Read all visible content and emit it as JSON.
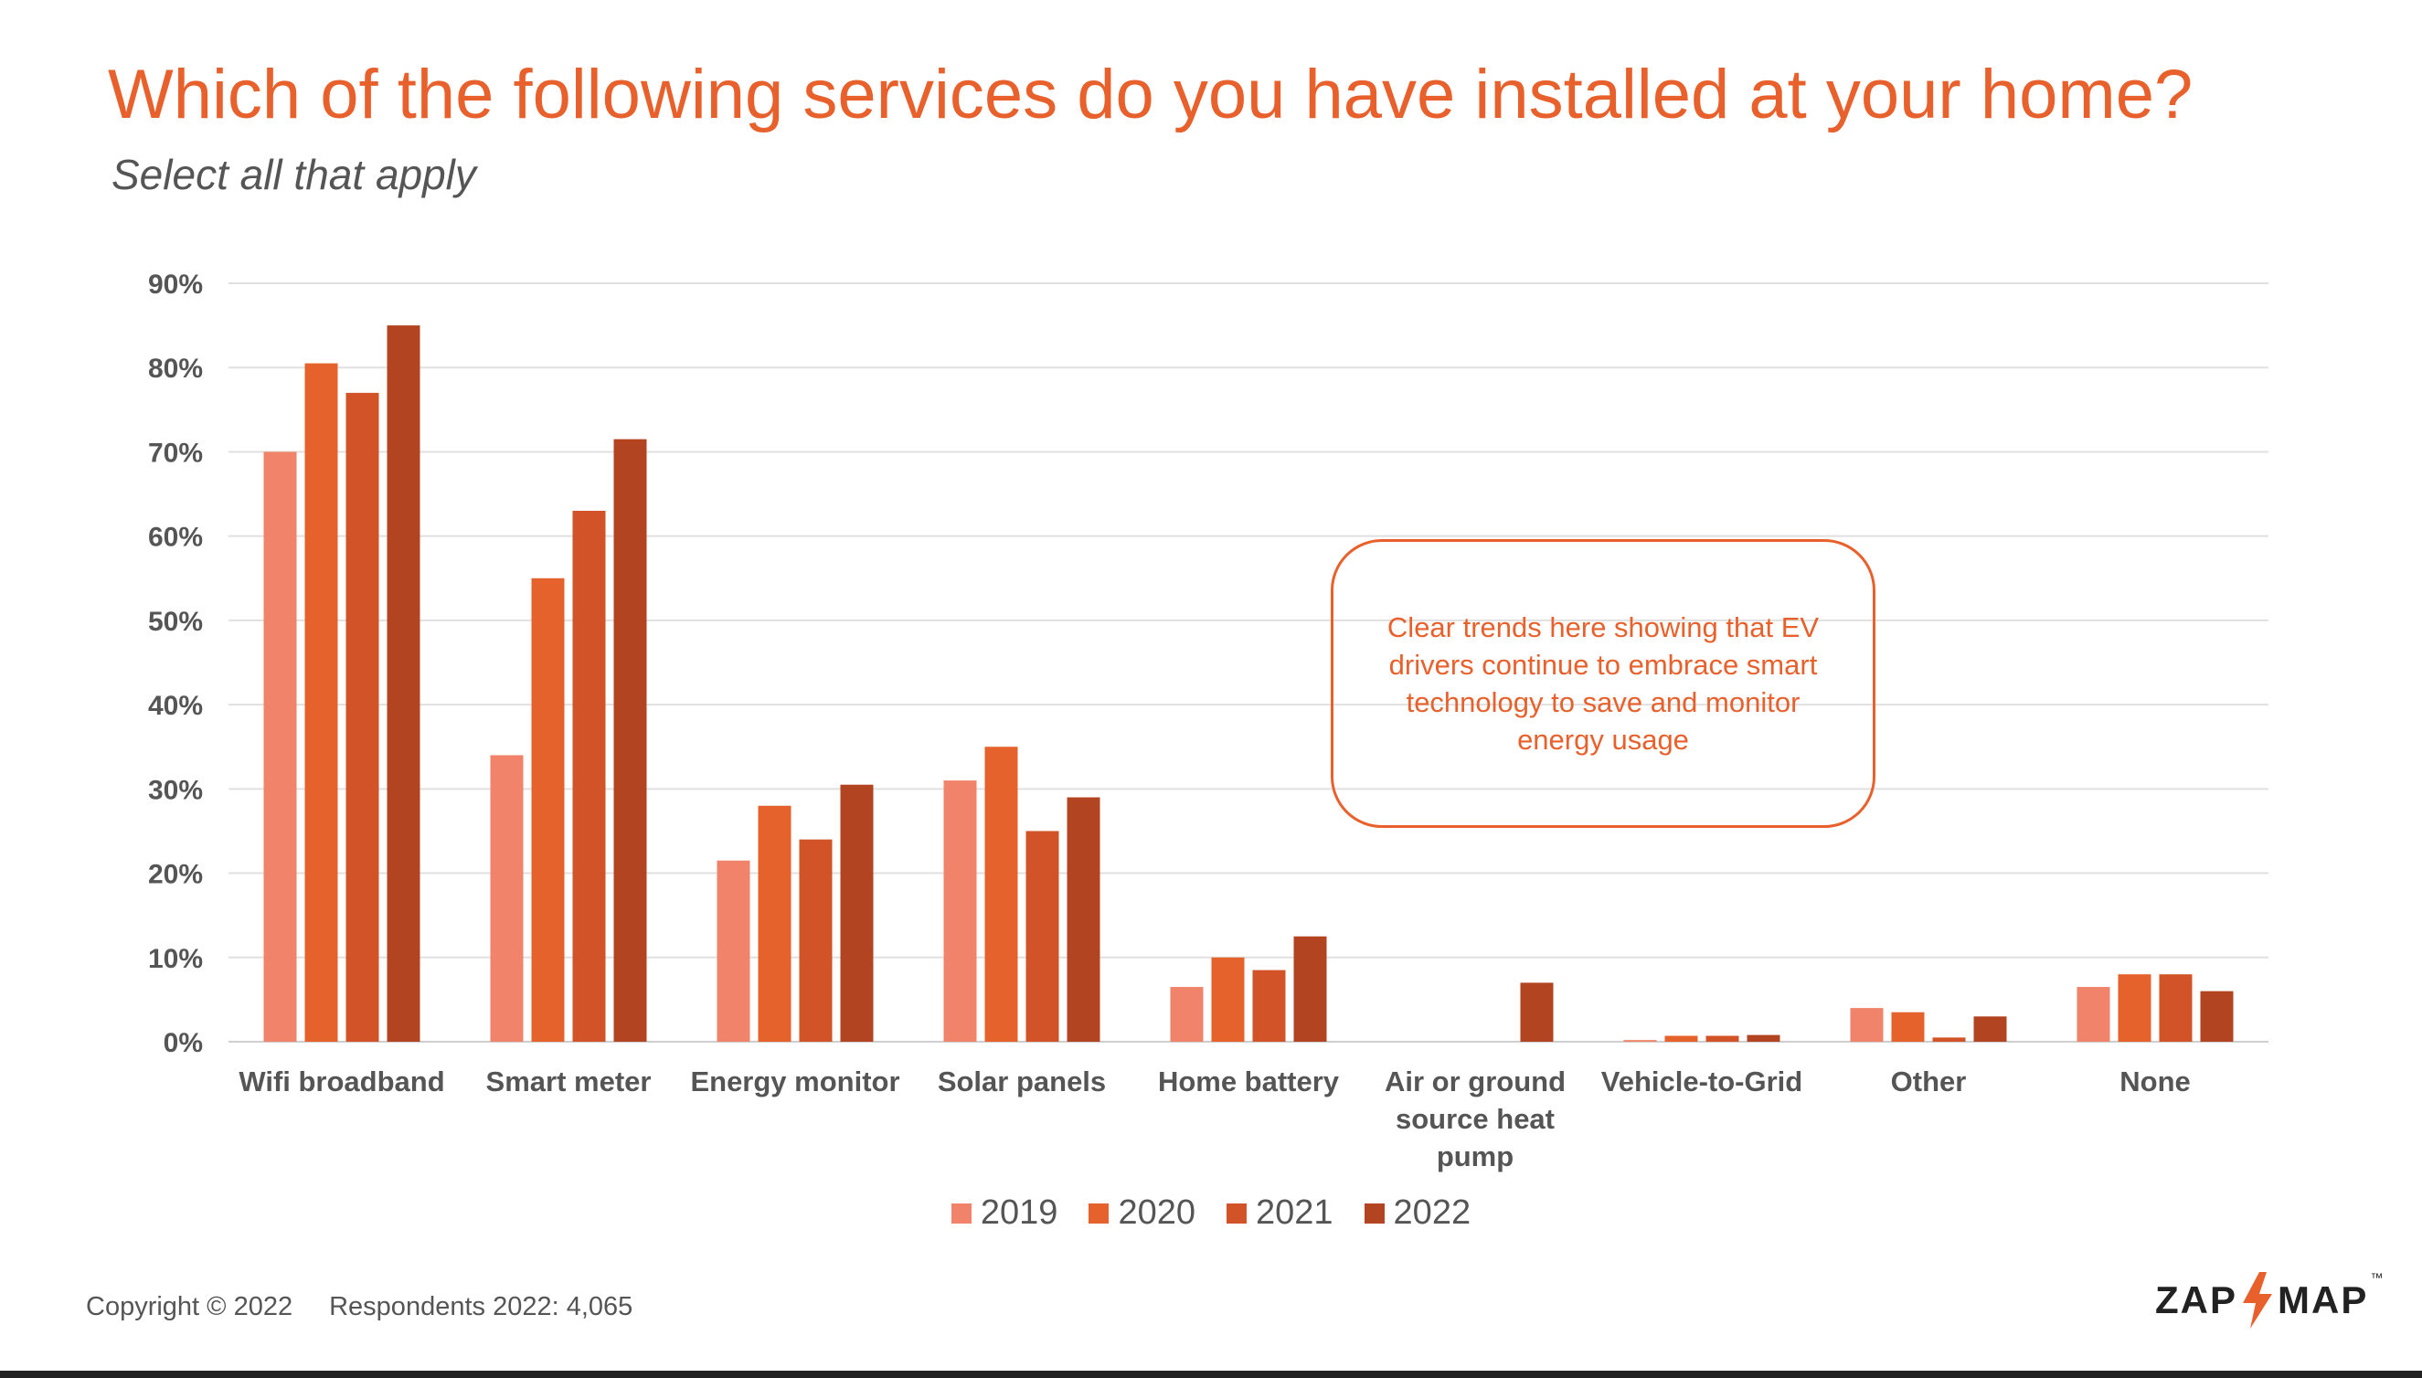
{
  "title": "Which of the following services do you have installed at your home?",
  "subtitle": "Select all that apply",
  "callout": "Clear trends here showing that EV drivers continue to embrace smart technology to save and monitor energy usage",
  "footer": {
    "copyright": "Copyright © 2022",
    "respondents": "Respondents 2022: 4,065"
  },
  "logo": {
    "left": "ZAP",
    "right": "MAP",
    "mark": "™"
  },
  "colors": {
    "axis_text": "#555555",
    "grid": "#e0e0e0",
    "title": "#e8612c"
  },
  "chart_data": {
    "type": "bar",
    "categories": [
      "Wifi broadband",
      "Smart meter",
      "Energy monitor",
      "Solar panels",
      "Home battery",
      "Air or ground source heat pump",
      "Vehicle-to-Grid",
      "Other",
      "None"
    ],
    "category_lines": [
      [
        "Wifi broadband"
      ],
      [
        "Smart meter"
      ],
      [
        "Energy monitor"
      ],
      [
        "Solar panels"
      ],
      [
        "Home battery"
      ],
      [
        "Air or ground",
        "source heat",
        "pump"
      ],
      [
        "Vehicle-to-Grid"
      ],
      [
        "Other"
      ],
      [
        "None"
      ]
    ],
    "series": [
      {
        "name": "2019",
        "color": "#f0836a",
        "values": [
          70,
          34,
          21.5,
          31,
          6.5,
          0,
          0.2,
          4,
          6.5
        ]
      },
      {
        "name": "2020",
        "color": "#e5622c",
        "values": [
          80.5,
          55,
          28,
          35,
          10,
          0,
          0.7,
          3.5,
          8
        ]
      },
      {
        "name": "2021",
        "color": "#d15327",
        "values": [
          77,
          63,
          24,
          25,
          8.5,
          0,
          0.7,
          0.5,
          8
        ]
      },
      {
        "name": "2022",
        "color": "#b24422",
        "values": [
          85,
          71.5,
          30.5,
          29,
          12.5,
          7,
          0.8,
          3,
          6
        ]
      }
    ],
    "ylim": [
      0,
      90
    ],
    "yticks": [
      0,
      10,
      20,
      30,
      40,
      50,
      60,
      70,
      80,
      90
    ],
    "ytick_format": "percent",
    "grid": true,
    "legend_position": "bottom-center"
  }
}
